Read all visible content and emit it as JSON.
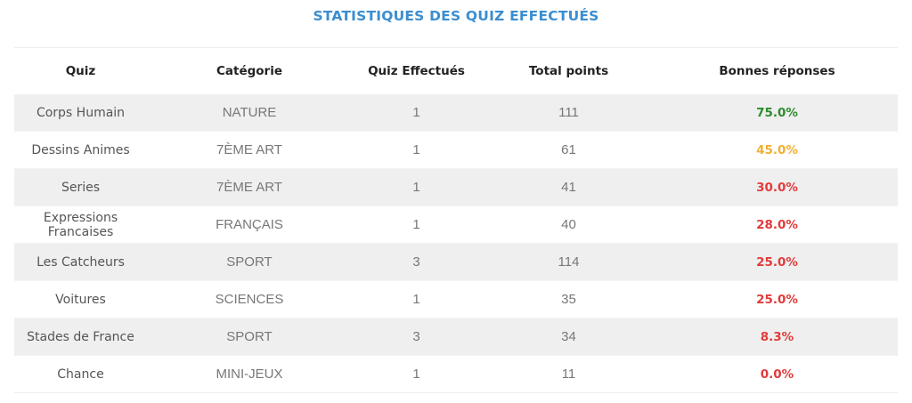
{
  "title": "STATISTIQUES DES QUIZ EFFECTUÉS",
  "table": {
    "headers": [
      "Quiz",
      "Catégorie",
      "Quiz Effectués",
      "Total points",
      "Bonnes réponses"
    ],
    "rows": [
      {
        "quiz": "Corps Humain",
        "category": "NATURE",
        "count": "1",
        "points": "111",
        "score": "75.0%",
        "score_color": "#2e8b2e"
      },
      {
        "quiz": "Dessins Animes",
        "category": "7ÈME ART",
        "count": "1",
        "points": "61",
        "score": "45.0%",
        "score_color": "#f0b030"
      },
      {
        "quiz": "Series",
        "category": "7ÈME ART",
        "count": "1",
        "points": "41",
        "score": "30.0%",
        "score_color": "#e23b3b"
      },
      {
        "quiz": "Expressions Francaises",
        "category": "FRANÇAIS",
        "count": "1",
        "points": "40",
        "score": "28.0%",
        "score_color": "#e23b3b"
      },
      {
        "quiz": "Les Catcheurs",
        "category": "SPORT",
        "count": "3",
        "points": "114",
        "score": "25.0%",
        "score_color": "#e23b3b"
      },
      {
        "quiz": "Voitures",
        "category": "SCIENCES",
        "count": "1",
        "points": "35",
        "score": "25.0%",
        "score_color": "#e23b3b"
      },
      {
        "quiz": "Stades de France",
        "category": "SPORT",
        "count": "3",
        "points": "34",
        "score": "8.3%",
        "score_color": "#e23b3b"
      },
      {
        "quiz": "Chance",
        "category": "MINI-JEUX",
        "count": "1",
        "points": "11",
        "score": "0.0%",
        "score_color": "#e23b3b"
      }
    ]
  }
}
